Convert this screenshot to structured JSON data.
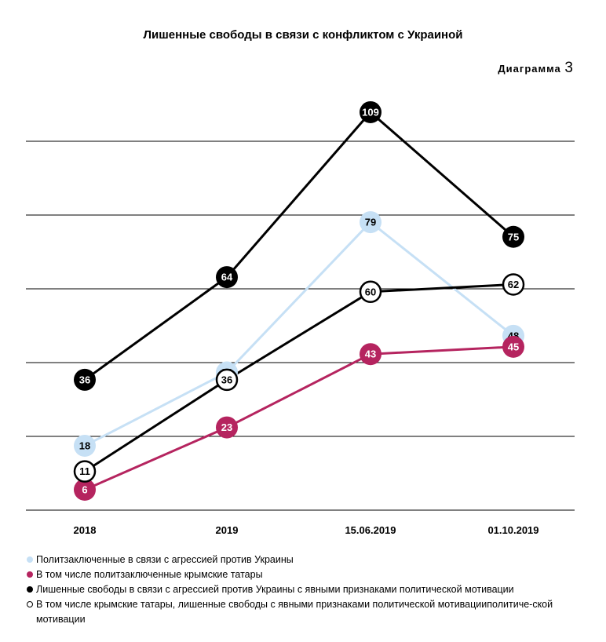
{
  "header": {
    "title": "Лишенные свободы в связи с конфликтом с Украиной",
    "diagram_word": "Диаграмма",
    "diagram_number": "3"
  },
  "chart_data": {
    "type": "line",
    "categories": [
      "2018",
      "2019",
      "15.06.2019",
      "01.10.2019"
    ],
    "series": [
      {
        "name": "Политзаключенные в связи с агрессией против Украины",
        "values": [
          18,
          38,
          79,
          48
        ],
        "color": "#c6e0f5",
        "label_color": "#000000",
        "marker": "filled-light"
      },
      {
        "name": "В том числе политзаключенные крымские татары",
        "values": [
          6,
          23,
          43,
          45
        ],
        "color": "#b5245f",
        "label_color": "#ffffff",
        "marker": "filled"
      },
      {
        "name": "Лишенные свободы в связи с агрессией против Украины с явными признаками политической мотивации",
        "values": [
          36,
          64,
          109,
          75
        ],
        "color": "#000000",
        "label_color": "#ffffff",
        "marker": "filled"
      },
      {
        "name": "В том числе крымские татары, лишенные свободы с явными признаками политической мотивацииполитиче-ской мотивации",
        "values": [
          11,
          36,
          60,
          62
        ],
        "color": "#000000",
        "label_color": "#000000",
        "marker": "hollow"
      }
    ],
    "ylim": [
      0,
      109
    ],
    "grid": true,
    "legend": "bottom"
  }
}
